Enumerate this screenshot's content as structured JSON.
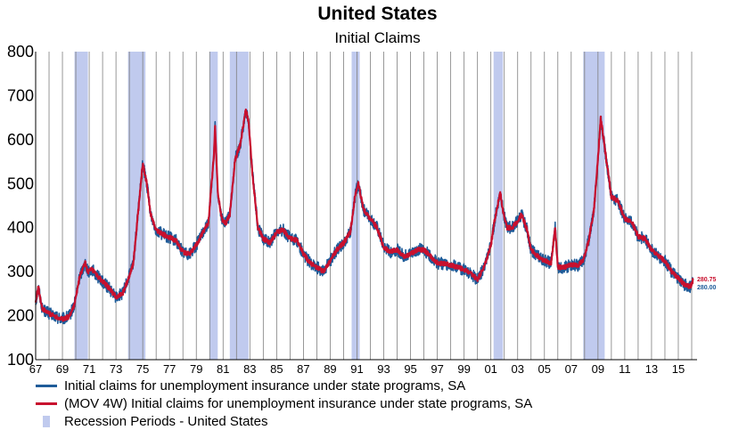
{
  "header": {
    "title": "United States",
    "subtitle": "Initial Claims"
  },
  "legend": {
    "series1": "Initial claims for unemployment insurance under state programs, SA",
    "series2": "(MOV 4W) Initial claims for unemployment insurance under state programs, SA",
    "recession": "Recession Periods - United States"
  },
  "end_labels": {
    "ma": "280.75",
    "weekly": "280.00"
  },
  "colors": {
    "weekly": "#1f5c99",
    "moving_average": "#c8102e",
    "recession": "#c0caee",
    "grid": "#7f7f7f"
  },
  "chart_data": {
    "type": "line",
    "title": "United States",
    "subtitle": "Initial Claims",
    "ylim": [
      100,
      800
    ],
    "yticks": [
      100,
      200,
      300,
      400,
      500,
      600,
      700,
      800
    ],
    "xlim": [
      1967.0,
      2016.4
    ],
    "xtick_labels": [
      "67",
      "69",
      "71",
      "73",
      "75",
      "77",
      "79",
      "81",
      "83",
      "85",
      "87",
      "89",
      "91",
      "93",
      "95",
      "97",
      "99",
      "01",
      "03",
      "05",
      "07",
      "09",
      "11",
      "13",
      "15"
    ],
    "grid": "vertical",
    "legend_position": "bottom",
    "recessions": [
      [
        1969.9,
        1970.9
      ],
      [
        1973.9,
        1975.2
      ],
      [
        1980.0,
        1980.6
      ],
      [
        1981.5,
        1982.9
      ],
      [
        1990.6,
        1991.2
      ],
      [
        2001.2,
        2001.9
      ],
      [
        2007.9,
        2009.5
      ]
    ],
    "series": [
      {
        "name": "Initial claims for unemployment insurance under state programs, SA",
        "role": "weekly",
        "noise": 14,
        "points": [
          [
            1967.0,
            230
          ],
          [
            1967.2,
            265
          ],
          [
            1967.5,
            215
          ],
          [
            1968.0,
            205
          ],
          [
            1968.5,
            198
          ],
          [
            1969.0,
            192
          ],
          [
            1969.5,
            198
          ],
          [
            1969.9,
            225
          ],
          [
            1970.3,
            290
          ],
          [
            1970.7,
            320
          ],
          [
            1970.9,
            300
          ],
          [
            1971.2,
            305
          ],
          [
            1971.6,
            290
          ],
          [
            1972.0,
            278
          ],
          [
            1972.5,
            262
          ],
          [
            1973.0,
            242
          ],
          [
            1973.5,
            250
          ],
          [
            1973.9,
            282
          ],
          [
            1974.3,
            320
          ],
          [
            1974.7,
            450
          ],
          [
            1975.0,
            545
          ],
          [
            1975.3,
            500
          ],
          [
            1975.6,
            430
          ],
          [
            1976.0,
            395
          ],
          [
            1976.5,
            385
          ],
          [
            1977.0,
            378
          ],
          [
            1977.5,
            370
          ],
          [
            1978.0,
            345
          ],
          [
            1978.5,
            340
          ],
          [
            1979.0,
            360
          ],
          [
            1979.5,
            390
          ],
          [
            1979.9,
            410
          ],
          [
            1980.3,
            560
          ],
          [
            1980.4,
            630
          ],
          [
            1980.6,
            480
          ],
          [
            1980.9,
            420
          ],
          [
            1981.2,
            410
          ],
          [
            1981.5,
            430
          ],
          [
            1981.9,
            555
          ],
          [
            1982.3,
            590
          ],
          [
            1982.7,
            670
          ],
          [
            1982.9,
            640
          ],
          [
            1983.2,
            520
          ],
          [
            1983.6,
            400
          ],
          [
            1984.0,
            375
          ],
          [
            1984.5,
            365
          ],
          [
            1985.0,
            390
          ],
          [
            1985.5,
            395
          ],
          [
            1986.0,
            375
          ],
          [
            1986.5,
            372
          ],
          [
            1987.0,
            340
          ],
          [
            1987.5,
            320
          ],
          [
            1988.0,
            310
          ],
          [
            1988.5,
            300
          ],
          [
            1989.0,
            325
          ],
          [
            1989.5,
            350
          ],
          [
            1990.0,
            365
          ],
          [
            1990.5,
            390
          ],
          [
            1990.9,
            480
          ],
          [
            1991.1,
            500
          ],
          [
            1991.5,
            440
          ],
          [
            1992.0,
            420
          ],
          [
            1992.5,
            400
          ],
          [
            1993.0,
            355
          ],
          [
            1993.5,
            345
          ],
          [
            1994.0,
            350
          ],
          [
            1994.5,
            335
          ],
          [
            1995.0,
            340
          ],
          [
            1995.5,
            350
          ],
          [
            1996.0,
            350
          ],
          [
            1996.5,
            335
          ],
          [
            1997.0,
            320
          ],
          [
            1997.5,
            318
          ],
          [
            1998.0,
            315
          ],
          [
            1998.5,
            310
          ],
          [
            1999.0,
            305
          ],
          [
            1999.5,
            295
          ],
          [
            2000.0,
            282
          ],
          [
            2000.5,
            310
          ],
          [
            2001.0,
            360
          ],
          [
            2001.3,
            420
          ],
          [
            2001.7,
            480
          ],
          [
            2001.9,
            440
          ],
          [
            2002.2,
            400
          ],
          [
            2002.6,
            400
          ],
          [
            2003.0,
            415
          ],
          [
            2003.3,
            430
          ],
          [
            2003.7,
            395
          ],
          [
            2004.0,
            350
          ],
          [
            2004.5,
            335
          ],
          [
            2005.0,
            325
          ],
          [
            2005.5,
            320
          ],
          [
            2005.8,
            400
          ],
          [
            2006.0,
            310
          ],
          [
            2006.5,
            310
          ],
          [
            2007.0,
            315
          ],
          [
            2007.5,
            315
          ],
          [
            2007.9,
            325
          ],
          [
            2008.3,
            370
          ],
          [
            2008.7,
            440
          ],
          [
            2009.0,
            560
          ],
          [
            2009.2,
            650
          ],
          [
            2009.6,
            560
          ],
          [
            2010.0,
            470
          ],
          [
            2010.5,
            460
          ],
          [
            2011.0,
            420
          ],
          [
            2011.5,
            415
          ],
          [
            2012.0,
            380
          ],
          [
            2012.5,
            375
          ],
          [
            2013.0,
            350
          ],
          [
            2013.5,
            335
          ],
          [
            2014.0,
            325
          ],
          [
            2014.5,
            300
          ],
          [
            2015.0,
            285
          ],
          [
            2015.5,
            270
          ],
          [
            2015.9,
            265
          ],
          [
            2016.1,
            280
          ]
        ]
      },
      {
        "name": "(MOV 4W) Initial claims for unemployment insurance under state programs, SA",
        "role": "moving_average",
        "noise": 5,
        "points": [
          [
            1967.0,
            230
          ],
          [
            1967.2,
            265
          ],
          [
            1967.5,
            215
          ],
          [
            1968.0,
            205
          ],
          [
            1968.5,
            198
          ],
          [
            1969.0,
            192
          ],
          [
            1969.5,
            198
          ],
          [
            1969.9,
            225
          ],
          [
            1970.3,
            290
          ],
          [
            1970.7,
            320
          ],
          [
            1970.9,
            300
          ],
          [
            1971.2,
            305
          ],
          [
            1971.6,
            290
          ],
          [
            1972.0,
            278
          ],
          [
            1972.5,
            262
          ],
          [
            1973.0,
            242
          ],
          [
            1973.5,
            250
          ],
          [
            1973.9,
            282
          ],
          [
            1974.3,
            320
          ],
          [
            1974.7,
            450
          ],
          [
            1975.0,
            545
          ],
          [
            1975.3,
            500
          ],
          [
            1975.6,
            430
          ],
          [
            1976.0,
            395
          ],
          [
            1976.5,
            385
          ],
          [
            1977.0,
            378
          ],
          [
            1977.5,
            370
          ],
          [
            1978.0,
            345
          ],
          [
            1978.5,
            340
          ],
          [
            1979.0,
            360
          ],
          [
            1979.5,
            390
          ],
          [
            1979.9,
            410
          ],
          [
            1980.3,
            560
          ],
          [
            1980.4,
            630
          ],
          [
            1980.6,
            480
          ],
          [
            1980.9,
            420
          ],
          [
            1981.2,
            410
          ],
          [
            1981.5,
            430
          ],
          [
            1981.9,
            555
          ],
          [
            1982.3,
            590
          ],
          [
            1982.7,
            670
          ],
          [
            1982.9,
            640
          ],
          [
            1983.2,
            520
          ],
          [
            1983.6,
            400
          ],
          [
            1984.0,
            375
          ],
          [
            1984.5,
            365
          ],
          [
            1985.0,
            390
          ],
          [
            1985.5,
            395
          ],
          [
            1986.0,
            375
          ],
          [
            1986.5,
            372
          ],
          [
            1987.0,
            340
          ],
          [
            1987.5,
            320
          ],
          [
            1988.0,
            310
          ],
          [
            1988.5,
            300
          ],
          [
            1989.0,
            325
          ],
          [
            1989.5,
            350
          ],
          [
            1990.0,
            365
          ],
          [
            1990.5,
            390
          ],
          [
            1990.9,
            480
          ],
          [
            1991.1,
            500
          ],
          [
            1991.5,
            440
          ],
          [
            1992.0,
            420
          ],
          [
            1992.5,
            400
          ],
          [
            1993.0,
            355
          ],
          [
            1993.5,
            345
          ],
          [
            1994.0,
            350
          ],
          [
            1994.5,
            335
          ],
          [
            1995.0,
            340
          ],
          [
            1995.5,
            350
          ],
          [
            1996.0,
            350
          ],
          [
            1996.5,
            335
          ],
          [
            1997.0,
            320
          ],
          [
            1997.5,
            318
          ],
          [
            1998.0,
            315
          ],
          [
            1998.5,
            310
          ],
          [
            1999.0,
            305
          ],
          [
            1999.5,
            295
          ],
          [
            2000.0,
            282
          ],
          [
            2000.5,
            310
          ],
          [
            2001.0,
            360
          ],
          [
            2001.3,
            420
          ],
          [
            2001.7,
            480
          ],
          [
            2001.9,
            440
          ],
          [
            2002.2,
            400
          ],
          [
            2002.6,
            400
          ],
          [
            2003.0,
            415
          ],
          [
            2003.3,
            430
          ],
          [
            2003.7,
            395
          ],
          [
            2004.0,
            350
          ],
          [
            2004.5,
            335
          ],
          [
            2005.0,
            325
          ],
          [
            2005.5,
            320
          ],
          [
            2005.8,
            400
          ],
          [
            2006.0,
            310
          ],
          [
            2006.5,
            310
          ],
          [
            2007.0,
            315
          ],
          [
            2007.5,
            315
          ],
          [
            2007.9,
            325
          ],
          [
            2008.3,
            370
          ],
          [
            2008.7,
            440
          ],
          [
            2009.0,
            560
          ],
          [
            2009.2,
            650
          ],
          [
            2009.6,
            560
          ],
          [
            2010.0,
            470
          ],
          [
            2010.5,
            460
          ],
          [
            2011.0,
            420
          ],
          [
            2011.5,
            415
          ],
          [
            2012.0,
            380
          ],
          [
            2012.5,
            375
          ],
          [
            2013.0,
            350
          ],
          [
            2013.5,
            335
          ],
          [
            2014.0,
            325
          ],
          [
            2014.5,
            300
          ],
          [
            2015.0,
            285
          ],
          [
            2015.5,
            270
          ],
          [
            2015.9,
            265
          ],
          [
            2016.1,
            281
          ]
        ]
      }
    ]
  }
}
